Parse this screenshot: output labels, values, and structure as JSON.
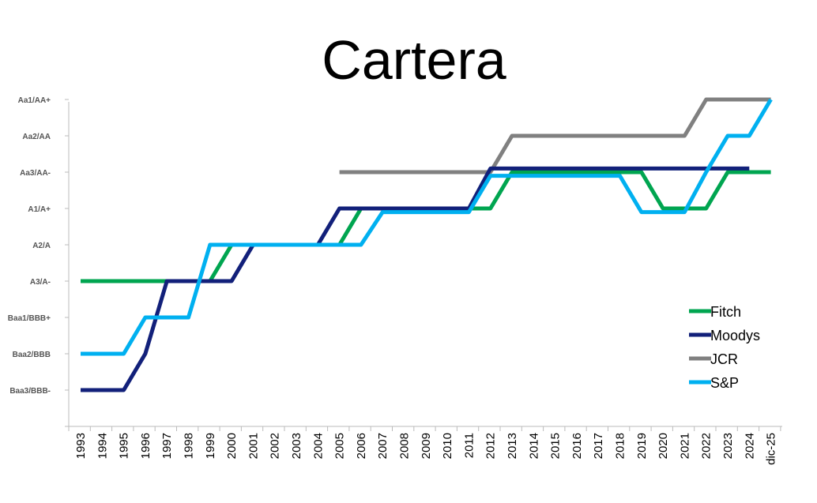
{
  "chart_data": {
    "type": "line",
    "title": "Cartera",
    "xlabel": "",
    "ylabel": "",
    "categories": [
      "1993",
      "1994",
      "1995",
      "1996",
      "1997",
      "1998",
      "1999",
      "2000",
      "2001",
      "2002",
      "2003",
      "2004",
      "2005",
      "2006",
      "2007",
      "2008",
      "2009",
      "2010",
      "2011",
      "2012",
      "2013",
      "2014",
      "2015",
      "2016",
      "2017",
      "2018",
      "2019",
      "2020",
      "2021",
      "2022",
      "2023",
      "2024",
      "dic-25"
    ],
    "y_levels": [
      "Baa3/BBB-",
      "Baa2/BBB",
      "Baa1/BBB+",
      "A3/A-",
      "A2/A",
      "A1/A+",
      "Aa3/AA-",
      "Aa2/AA",
      "Aa1/AA+"
    ],
    "legend_position": "bottom-right",
    "grid": false,
    "series": [
      {
        "name": "Fitch",
        "color": "#00A550",
        "values": [
          4,
          4,
          4,
          4,
          4,
          4,
          4,
          5,
          5,
          5,
          5,
          5,
          5,
          6,
          6,
          6,
          6,
          6,
          6,
          6,
          7,
          7,
          7,
          7,
          7,
          7,
          7,
          6,
          6,
          6,
          7,
          7,
          7
        ]
      },
      {
        "name": "Moodys",
        "color": "#12207A",
        "values": [
          1,
          1,
          1,
          2,
          4,
          4,
          4,
          4,
          5,
          5,
          5,
          5,
          6,
          6,
          6,
          6,
          6,
          6,
          6,
          7.1,
          7.1,
          7.1,
          7.1,
          7.1,
          7.1,
          7.1,
          7.1,
          7.1,
          7.1,
          7.1,
          7.1,
          7.1,
          null
        ]
      },
      {
        "name": "JCR",
        "color": "#808080",
        "values": [
          null,
          null,
          null,
          null,
          null,
          null,
          null,
          null,
          null,
          null,
          null,
          null,
          7,
          7,
          7,
          7,
          7,
          7,
          7,
          7,
          8,
          8,
          8,
          8,
          8,
          8,
          8,
          8,
          8,
          9,
          9,
          9,
          9
        ]
      },
      {
        "name": "S&P",
        "color": "#00B0F0",
        "values": [
          2,
          2,
          2,
          3,
          3,
          3,
          5,
          5,
          5,
          5,
          5,
          5,
          5,
          5,
          5.9,
          5.9,
          5.9,
          5.9,
          5.9,
          6.9,
          6.9,
          6.9,
          6.9,
          6.9,
          6.9,
          6.9,
          5.9,
          5.9,
          5.9,
          7,
          8,
          8,
          9
        ]
      }
    ]
  }
}
